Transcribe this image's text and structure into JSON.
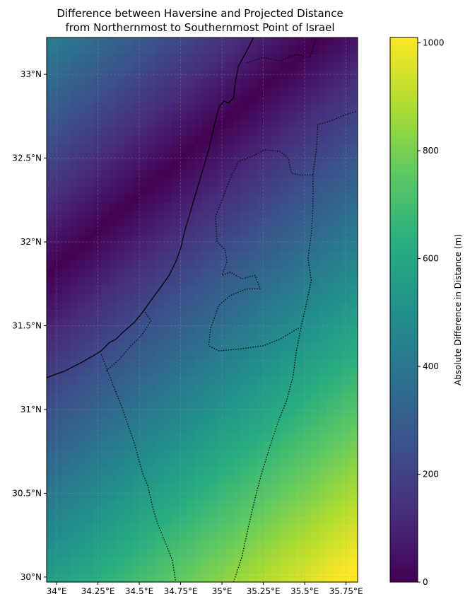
{
  "chart_data": {
    "type": "heatmap",
    "title": "Difference between Haversine and Projected Distance\nfrom Northernmost to Southernmost Point of Israel",
    "x_range": [
      33.94,
      35.82
    ],
    "y_range": [
      29.97,
      33.22
    ],
    "x_ticks": [
      {
        "value": 34.0,
        "label": "34°E"
      },
      {
        "value": 34.25,
        "label": "34.25°E"
      },
      {
        "value": 34.5,
        "label": "34.5°E"
      },
      {
        "value": 34.75,
        "label": "34.75°E"
      },
      {
        "value": 35.0,
        "label": "35°E"
      },
      {
        "value": 35.25,
        "label": "35.25°E"
      },
      {
        "value": 35.5,
        "label": "35.5°E"
      },
      {
        "value": 35.75,
        "label": "35.75°E"
      }
    ],
    "y_ticks": [
      {
        "value": 30.0,
        "label": "30°N"
      },
      {
        "value": 30.5,
        "label": "30.5°N"
      },
      {
        "value": 31.0,
        "label": "31°N"
      },
      {
        "value": 31.5,
        "label": "31.5°N"
      },
      {
        "value": 32.0,
        "label": "32°N"
      },
      {
        "value": 32.5,
        "label": "32.5°N"
      },
      {
        "value": 33.0,
        "label": "33°N"
      }
    ],
    "grid": true,
    "colormap": "viridis",
    "colorbar": {
      "label": "Absolute Difference in Distance (m)",
      "range": [
        0,
        1010
      ],
      "ticks": [
        {
          "value": 0,
          "label": "0"
        },
        {
          "value": 200,
          "label": "200"
        },
        {
          "value": 400,
          "label": "400"
        },
        {
          "value": 600,
          "label": "600"
        },
        {
          "value": 800,
          "label": "800"
        },
        {
          "value": 1000,
          "label": "1000"
        }
      ]
    },
    "field_model": {
      "description": "Absolute difference along the north-south profile; minimum near a diagonal ridge through the northwest, increasing toward the southeast",
      "zero_line": {
        "lon_a": 33.94,
        "lat_a": 31.8,
        "lon_b": 35.6,
        "lat_b": 33.22
      },
      "gradient_m_per_deg": 400,
      "max_value": 1010
    },
    "coastline": [
      [
        33.94,
        31.19
      ],
      [
        34.05,
        31.23
      ],
      [
        34.15,
        31.28
      ],
      [
        34.22,
        31.32
      ],
      [
        34.27,
        31.35
      ],
      [
        34.32,
        31.4
      ],
      [
        34.36,
        31.42
      ],
      [
        34.4,
        31.46
      ],
      [
        34.47,
        31.52
      ],
      [
        34.52,
        31.58
      ],
      [
        34.57,
        31.65
      ],
      [
        34.63,
        31.73
      ],
      [
        34.68,
        31.8
      ],
      [
        34.72,
        31.88
      ],
      [
        34.75,
        31.96
      ],
      [
        34.77,
        32.05
      ],
      [
        34.8,
        32.15
      ],
      [
        34.83,
        32.25
      ],
      [
        34.86,
        32.35
      ],
      [
        34.89,
        32.45
      ],
      [
        34.92,
        32.55
      ],
      [
        34.95,
        32.68
      ],
      [
        34.98,
        32.8
      ],
      [
        35.01,
        32.84
      ],
      [
        35.04,
        32.83
      ],
      [
        35.07,
        32.86
      ],
      [
        35.08,
        32.95
      ],
      [
        35.1,
        33.05
      ],
      [
        35.15,
        33.14
      ],
      [
        35.19,
        33.22
      ]
    ],
    "borders": [
      [
        [
          34.27,
          31.33
        ],
        [
          34.34,
          31.15
        ],
        [
          34.4,
          31.0
        ],
        [
          34.47,
          30.8
        ],
        [
          34.52,
          30.62
        ],
        [
          34.55,
          30.55
        ],
        [
          34.58,
          30.42
        ],
        [
          34.61,
          30.32
        ],
        [
          34.66,
          30.2
        ],
        [
          34.7,
          30.1
        ],
        [
          34.72,
          29.97
        ]
      ],
      [
        [
          34.3,
          31.23
        ],
        [
          34.38,
          31.3
        ],
        [
          34.45,
          31.38
        ],
        [
          34.52,
          31.45
        ],
        [
          34.57,
          31.53
        ],
        [
          34.53,
          31.59
        ]
      ],
      [
        [
          35.07,
          29.97
        ],
        [
          35.12,
          30.12
        ],
        [
          35.16,
          30.3
        ],
        [
          35.2,
          30.47
        ],
        [
          35.24,
          30.62
        ],
        [
          35.29,
          30.78
        ],
        [
          35.34,
          30.93
        ],
        [
          35.39,
          31.05
        ],
        [
          35.43,
          31.2
        ],
        [
          35.45,
          31.35
        ],
        [
          35.48,
          31.5
        ],
        [
          35.51,
          31.63
        ],
        [
          35.54,
          31.77
        ]
      ],
      [
        [
          35.54,
          31.77
        ],
        [
          35.52,
          31.9
        ],
        [
          35.54,
          32.05
        ],
        [
          35.55,
          32.2
        ],
        [
          35.55,
          32.4
        ],
        [
          35.57,
          32.55
        ],
        [
          35.58,
          32.7
        ],
        [
          35.65,
          32.72
        ],
        [
          35.75,
          32.76
        ],
        [
          35.82,
          32.78
        ]
      ],
      [
        [
          35.55,
          32.4
        ],
        [
          35.47,
          32.4
        ],
        [
          35.42,
          32.41
        ],
        [
          35.4,
          32.5
        ],
        [
          35.35,
          32.54
        ],
        [
          35.26,
          32.55
        ],
        [
          35.18,
          32.51
        ],
        [
          35.1,
          32.48
        ],
        [
          35.05,
          32.38
        ],
        [
          35.0,
          32.25
        ],
        [
          34.96,
          32.15
        ],
        [
          34.97,
          32.0
        ],
        [
          35.02,
          31.95
        ],
        [
          35.03,
          31.88
        ],
        [
          35.0,
          31.8
        ],
        [
          35.05,
          31.82
        ],
        [
          35.12,
          31.78
        ],
        [
          35.2,
          31.8
        ],
        [
          35.22,
          31.75
        ],
        [
          35.23,
          31.72
        ],
        [
          35.15,
          31.72
        ],
        [
          35.05,
          31.68
        ],
        [
          34.98,
          31.62
        ],
        [
          34.93,
          31.48
        ],
        [
          34.92,
          31.38
        ],
        [
          34.98,
          31.35
        ],
        [
          35.1,
          31.36
        ],
        [
          35.25,
          31.38
        ],
        [
          35.35,
          31.42
        ],
        [
          35.47,
          31.49
        ]
      ],
      [
        [
          35.15,
          33.07
        ],
        [
          35.25,
          33.1
        ],
        [
          35.35,
          33.08
        ],
        [
          35.45,
          33.12
        ],
        [
          35.53,
          33.1
        ],
        [
          35.57,
          33.22
        ]
      ]
    ]
  }
}
